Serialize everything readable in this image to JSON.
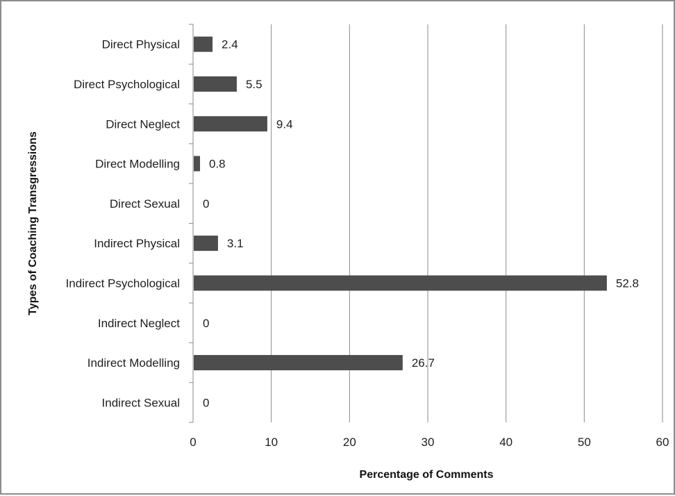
{
  "chart_data": {
    "type": "bar",
    "orientation": "horizontal",
    "categories": [
      "Direct Physical",
      "Direct Psychological",
      "Direct Neglect",
      "Direct Modelling",
      "Direct Sexual",
      "Indirect Physical",
      "Indirect Psychological",
      "Indirect Neglect",
      "Indirect Modelling",
      "Indirect Sexual"
    ],
    "values": [
      2.4,
      5.5,
      9.4,
      0.8,
      0,
      3.1,
      52.8,
      0,
      26.7,
      0
    ],
    "data_labels": [
      "2.4",
      "5.5",
      "9.4",
      "0.8",
      "0",
      "3.1",
      "52.8",
      "0",
      "26.7",
      "0"
    ],
    "title": "",
    "xlabel": "Percentage of Comments",
    "ylabel": "Types of Coaching Transgressions",
    "xlim": [
      0,
      60
    ],
    "xticks": [
      "0",
      "10",
      "20",
      "30",
      "40",
      "50",
      "60"
    ],
    "grid": "vertical major gridlines",
    "legend": "none",
    "bar_color": "#4d4d4d"
  }
}
